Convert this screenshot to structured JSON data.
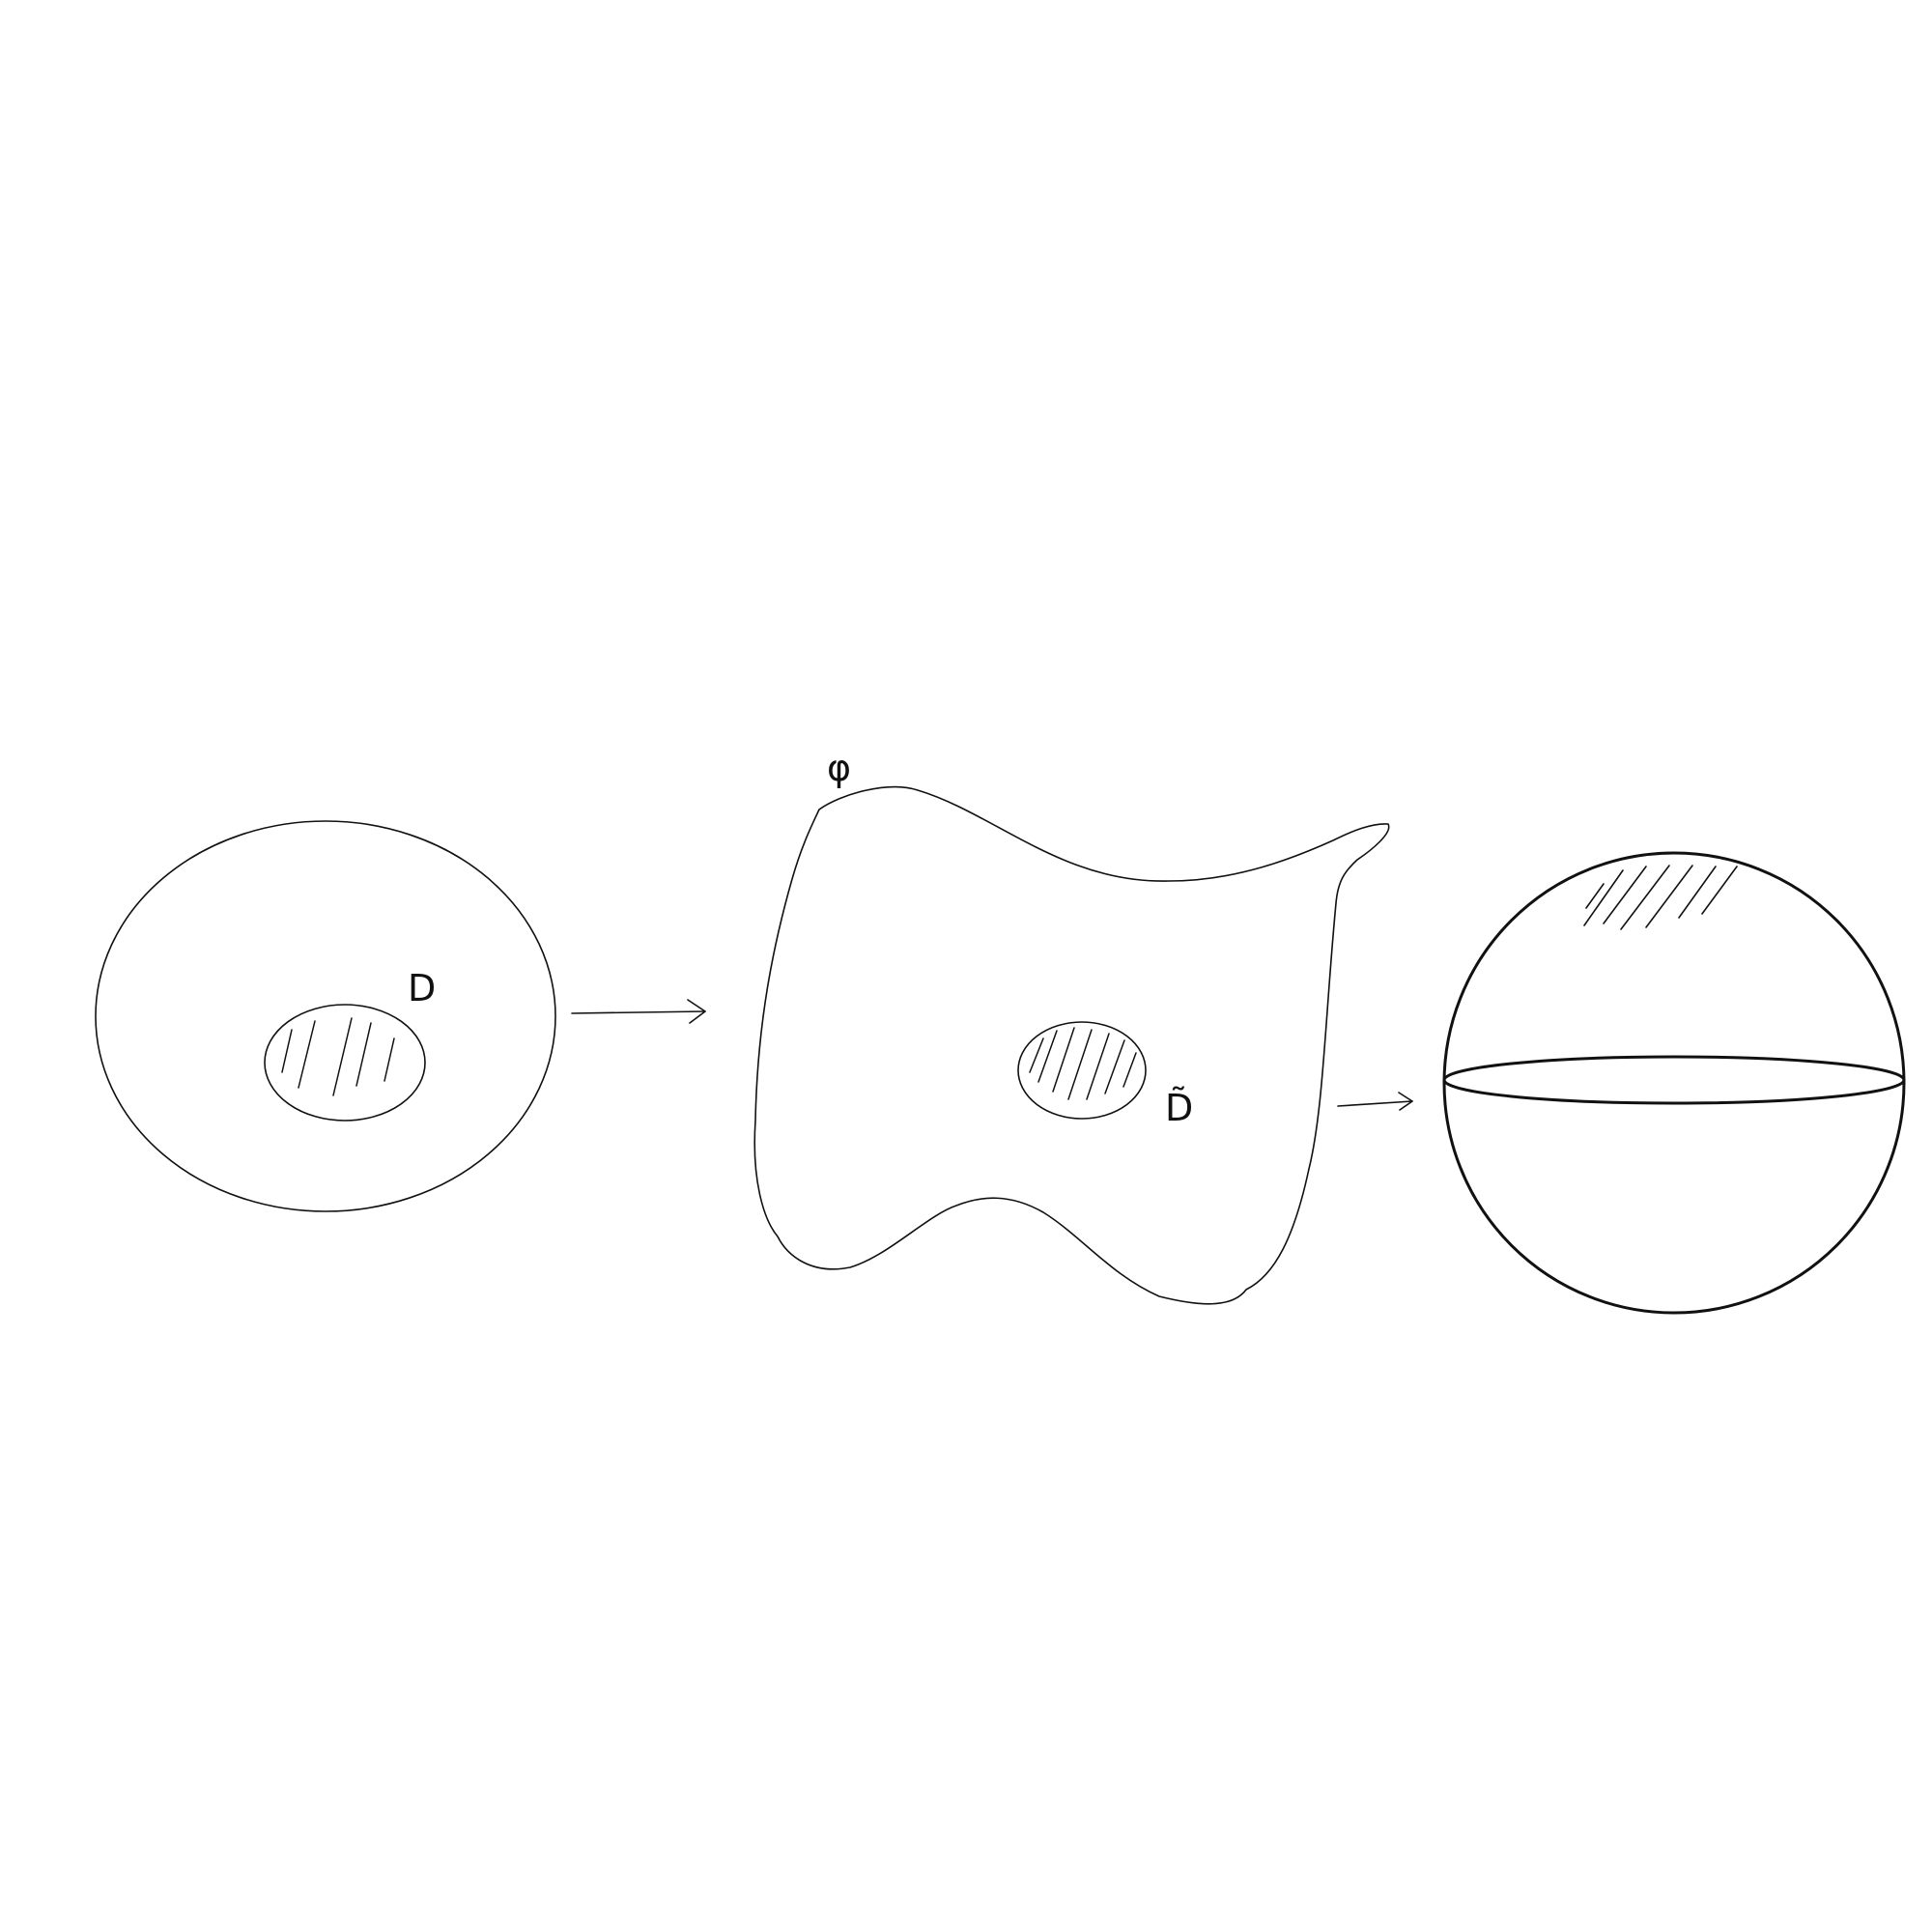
{
  "labels": {
    "domain_region": "D",
    "mapped_region": "D̃",
    "map": "φ"
  },
  "colors": {
    "ink": "#111111",
    "background": "#ffffff"
  }
}
